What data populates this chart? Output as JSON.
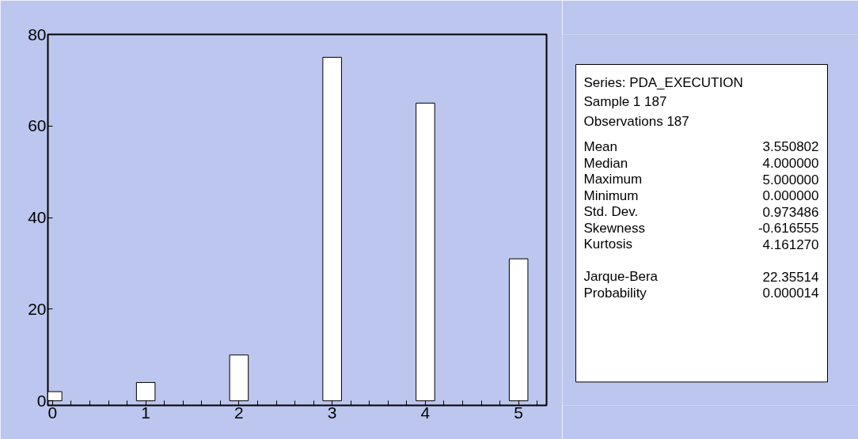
{
  "chart_data": [
    {
      "type": "bar",
      "x": [
        0,
        1,
        2,
        3,
        4,
        5
      ],
      "values": [
        2,
        4,
        10,
        75,
        65,
        31
      ],
      "color": "#ffffff",
      "xlim": [
        -0.05,
        5.3
      ],
      "ylim": [
        -1,
        80
      ],
      "xticks": [
        0,
        {
          "value": 0.2,
          "label": null
        },
        {
          "value": 0.4,
          "label": null
        },
        {
          "value": 0.6,
          "label": null
        },
        {
          "value": 0.8,
          "label": null
        },
        1,
        {
          "value": 1.2,
          "label": null
        },
        {
          "value": 1.4,
          "label": null
        },
        {
          "value": 1.6,
          "label": null
        },
        {
          "value": 1.8,
          "label": null
        },
        2,
        {
          "value": 2.2,
          "label": null
        },
        {
          "value": 2.4,
          "label": null
        },
        {
          "value": 2.6,
          "label": null
        },
        {
          "value": 2.8,
          "label": null
        },
        3,
        {
          "value": 3.2,
          "label": null
        },
        {
          "value": 3.4,
          "label": null
        },
        {
          "value": 3.6,
          "label": null
        },
        {
          "value": 3.8,
          "label": null
        },
        4,
        {
          "value": 4.2,
          "label": null
        },
        {
          "value": 4.4,
          "label": null
        },
        {
          "value": 4.6,
          "label": null
        },
        {
          "value": 4.8,
          "label": null
        },
        5,
        {
          "value": 5.2,
          "label": null
        }
      ],
      "yticks": [
        0,
        20,
        40,
        60,
        80
      ],
      "grid": false
    },
    {
      "type": "other",
      "annotations": [
        "Series: PDA_EXECUTION",
        "Sample 1 187",
        "Observations 187"
      ],
      "categories": [
        "Mean",
        "Median",
        "Maximum",
        "Minimum",
        "Std. Dev.",
        "Skewness",
        "Kurtosis",
        null,
        "Jarque-Bera",
        "Probability"
      ],
      "value_labels": [
        "3.550802",
        "4.000000",
        "5.000000",
        "0.000000",
        "0.973486",
        "-0.616555",
        "4.161270",
        null,
        "22.35514",
        "0.000014"
      ]
    }
  ]
}
